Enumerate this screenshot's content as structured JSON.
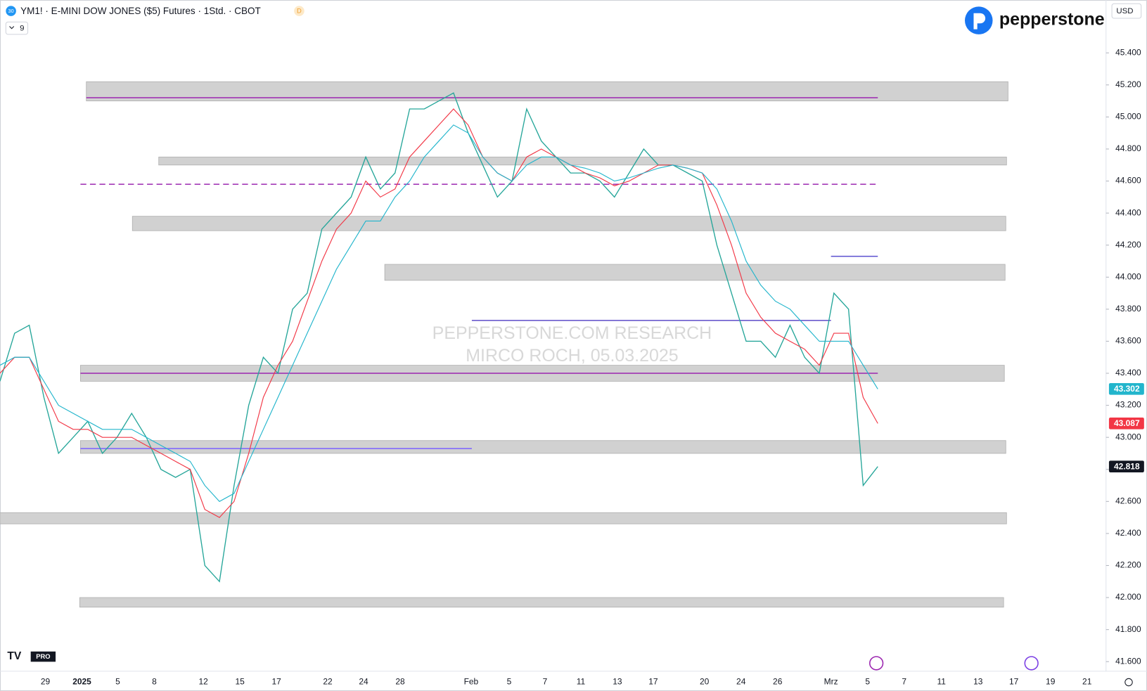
{
  "header": {
    "symbol_badge": "30",
    "title": "YM1! · E-MINI DOW JONES ($5) Futures · 1Std. · CBOT",
    "flag": "D",
    "indicator_count": "9",
    "currency": "USD",
    "brand": "pepperstone",
    "logo_tag": "PRO"
  },
  "chart_data": {
    "type": "line",
    "watermark": [
      "PEPPERSTONE.COM RESEARCH",
      "MIRCO ROCH, 05.03.2025"
    ],
    "x_labels": [
      "29",
      "2025",
      "5",
      "8",
      "12",
      "15",
      "17",
      "22",
      "24",
      "28",
      "Feb",
      "5",
      "7",
      "11",
      "13",
      "17",
      "20",
      "24",
      "26",
      "Mrz",
      "5",
      "7",
      "11",
      "13",
      "17",
      "19",
      "21"
    ],
    "ylim": [
      41540,
      45730
    ],
    "yticks": [
      {
        "value": 41600,
        "label": "41.600"
      },
      {
        "value": 41800,
        "label": "41.800"
      },
      {
        "value": 42000,
        "label": "42.000"
      },
      {
        "value": 42200,
        "label": "42.200"
      },
      {
        "value": 42400,
        "label": "42.400"
      },
      {
        "value": 42600,
        "label": "42.600"
      },
      {
        "value": 42800,
        "label": "42.800"
      },
      {
        "value": 43000,
        "label": "43.000"
      },
      {
        "value": 43200,
        "label": "43.200"
      },
      {
        "value": 43400,
        "label": "43.400"
      },
      {
        "value": 43600,
        "label": "43.600"
      },
      {
        "value": 43800,
        "label": "43.800"
      },
      {
        "value": 44000,
        "label": "44.000"
      },
      {
        "value": 44200,
        "label": "44.200"
      },
      {
        "value": 44400,
        "label": "44.400"
      },
      {
        "value": 44600,
        "label": "44.600"
      },
      {
        "value": 44800,
        "label": "44.800"
      },
      {
        "value": 45000,
        "label": "45.000"
      },
      {
        "value": 45200,
        "label": "45.200"
      },
      {
        "value": 45400,
        "label": "45.400"
      }
    ],
    "series": [
      {
        "color": "#26a69a",
        "values": [
          43350,
          43650,
          43700,
          43250,
          42900,
          43000,
          43100,
          42900,
          43000,
          43150,
          43000,
          42800,
          42750,
          42800,
          42200,
          42100,
          42700,
          43200,
          43500,
          43400,
          43800,
          43900,
          44300,
          44400,
          44500,
          44750,
          44550,
          44650,
          45050,
          45050,
          45100,
          45150,
          44900,
          44700,
          44500,
          44600,
          45050,
          44850,
          44750,
          44650,
          44650,
          44600,
          44500,
          44650,
          44800,
          44700,
          44700,
          44650,
          44600,
          44200,
          43900,
          43600,
          43600,
          43500,
          43700,
          43500,
          43400,
          43900,
          43800,
          42700,
          42818
        ]
      },
      {
        "color": "#f23645",
        "values": [
          43400,
          43500,
          43500,
          43300,
          43100,
          43050,
          43050,
          43000,
          43000,
          43000,
          42950,
          42900,
          42850,
          42800,
          42550,
          42500,
          42600,
          42900,
          43250,
          43450,
          43600,
          43850,
          44100,
          44300,
          44400,
          44600,
          44500,
          44550,
          44750,
          44850,
          44950,
          45050,
          44950,
          44750,
          44650,
          44600,
          44750,
          44800,
          44750,
          44700,
          44650,
          44620,
          44570,
          44600,
          44650,
          44700,
          44700,
          44680,
          44650,
          44450,
          44200,
          43900,
          43750,
          43650,
          43600,
          43550,
          43450,
          43650,
          43650,
          43250,
          43087
        ]
      },
      {
        "color": "#22b5cc",
        "values": [
          43450,
          43500,
          43500,
          43350,
          43200,
          43150,
          43100,
          43050,
          43050,
          43050,
          43000,
          42950,
          42900,
          42850,
          42700,
          42600,
          42650,
          42850,
          43050,
          43250,
          43450,
          43650,
          43850,
          44050,
          44200,
          44350,
          44350,
          44500,
          44600,
          44750,
          44850,
          44950,
          44900,
          44750,
          44650,
          44600,
          44700,
          44750,
          44750,
          44700,
          44680,
          44650,
          44600,
          44620,
          44650,
          44680,
          44700,
          44680,
          44650,
          44550,
          44350,
          44100,
          43950,
          43850,
          43800,
          43700,
          43600,
          43600,
          43600,
          43450,
          43302
        ]
      }
    ],
    "zones": [
      {
        "low": 45100,
        "high": 45220
      },
      {
        "low": 44700,
        "high": 44750
      },
      {
        "low": 44290,
        "high": 44380
      },
      {
        "low": 43980,
        "high": 44080
      },
      {
        "low": 43350,
        "high": 43450
      },
      {
        "low": 42900,
        "high": 42980
      },
      {
        "low": 42460,
        "high": 42530
      },
      {
        "low": 41940,
        "high": 42000
      }
    ],
    "zone_color": "#d1d1d1",
    "levels": [
      {
        "value": 45120,
        "color": "#9c27b0"
      },
      {
        "value": 44580,
        "color": "#9c27b0",
        "dashed": true
      },
      {
        "value": 43400,
        "color": "#9c27b0"
      },
      {
        "value": 42930,
        "color": "#7b61ff"
      },
      {
        "value": 43730,
        "color": "#6a5acd"
      },
      {
        "value": 44130,
        "color": "#5a4fcf"
      }
    ],
    "price_labels": [
      {
        "value": 43302,
        "label": "43.302",
        "color": "#22b5cc"
      },
      {
        "value": 43087,
        "label": "43.087",
        "color": "#f23645"
      },
      {
        "value": 42818,
        "label": "42.818",
        "color": "#131722"
      }
    ]
  }
}
